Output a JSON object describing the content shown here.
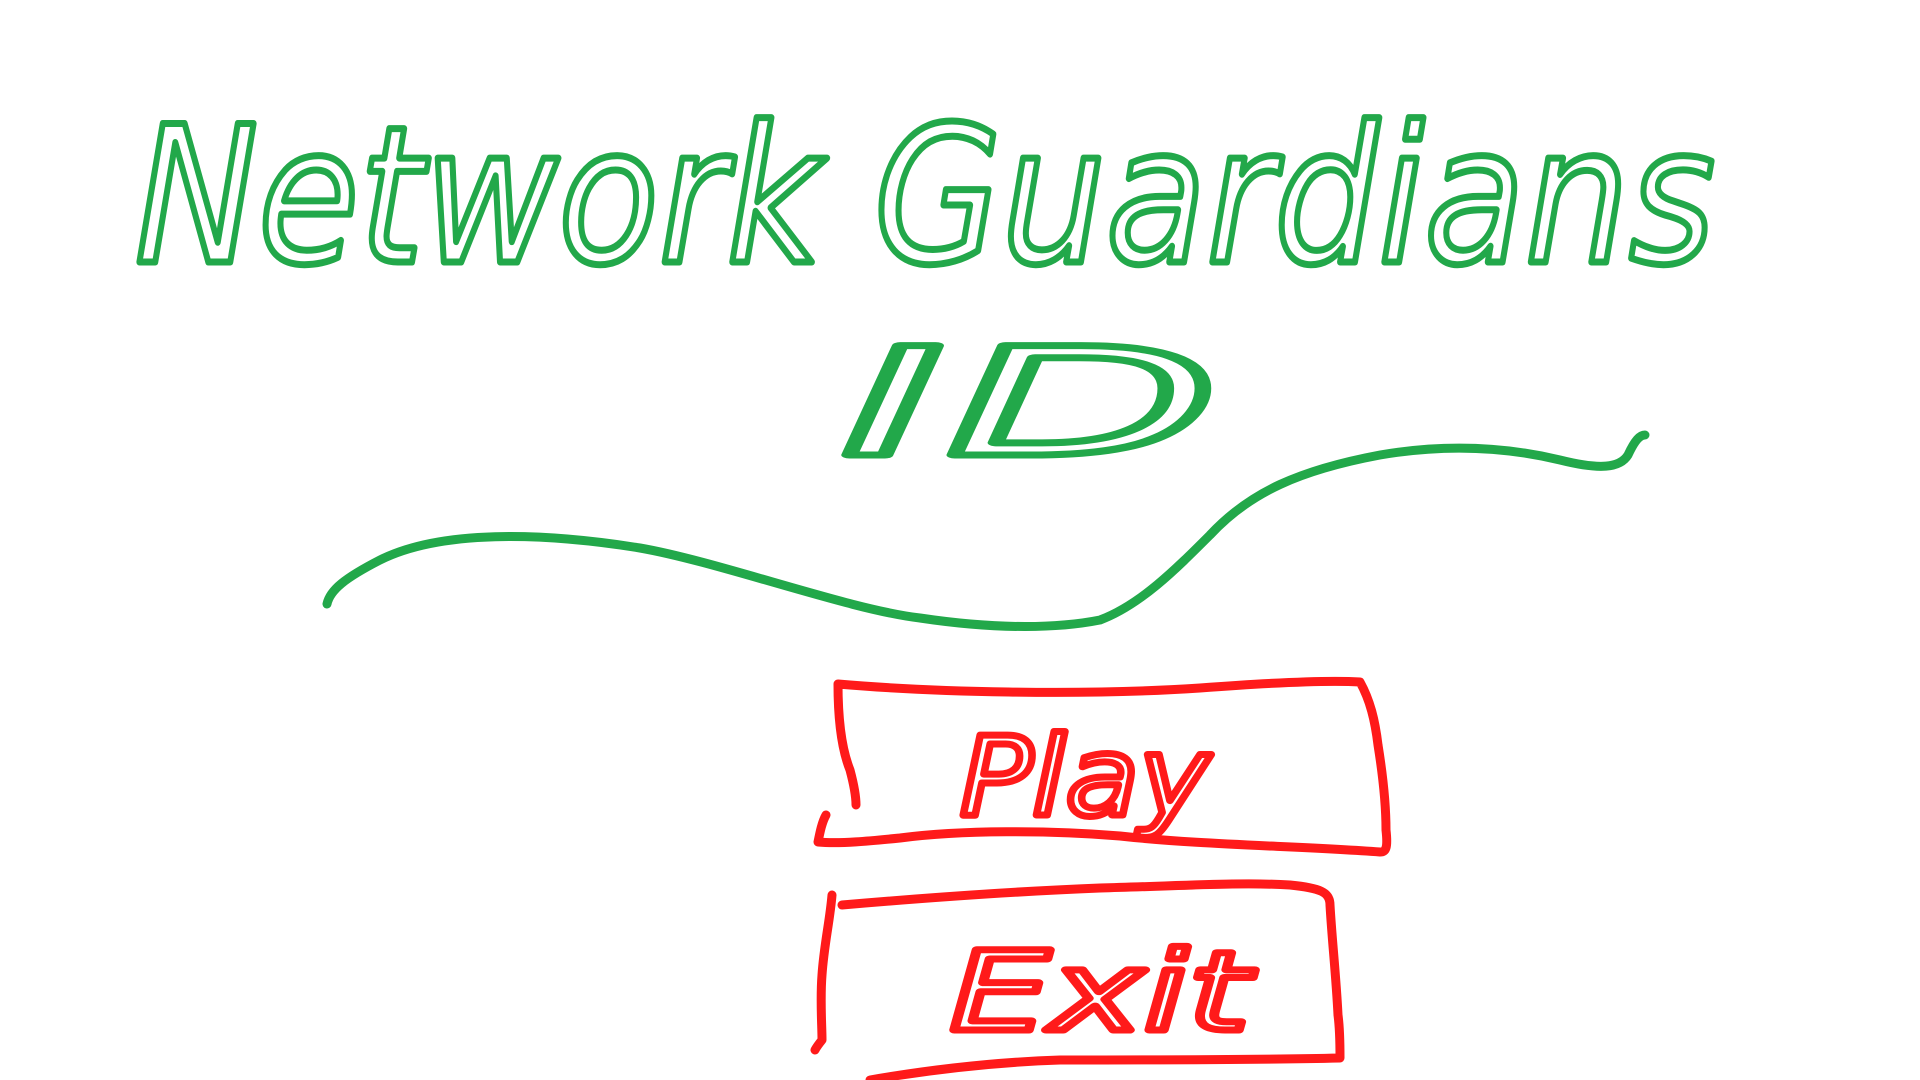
{
  "title": {
    "line1": "Network Guardians",
    "line2": "ID"
  },
  "menu": {
    "play_label": "Play",
    "exit_label": "Exit"
  },
  "colors": {
    "title_green": "#22a84a",
    "button_red": "#ff1a1a",
    "background": "#ffffff"
  }
}
